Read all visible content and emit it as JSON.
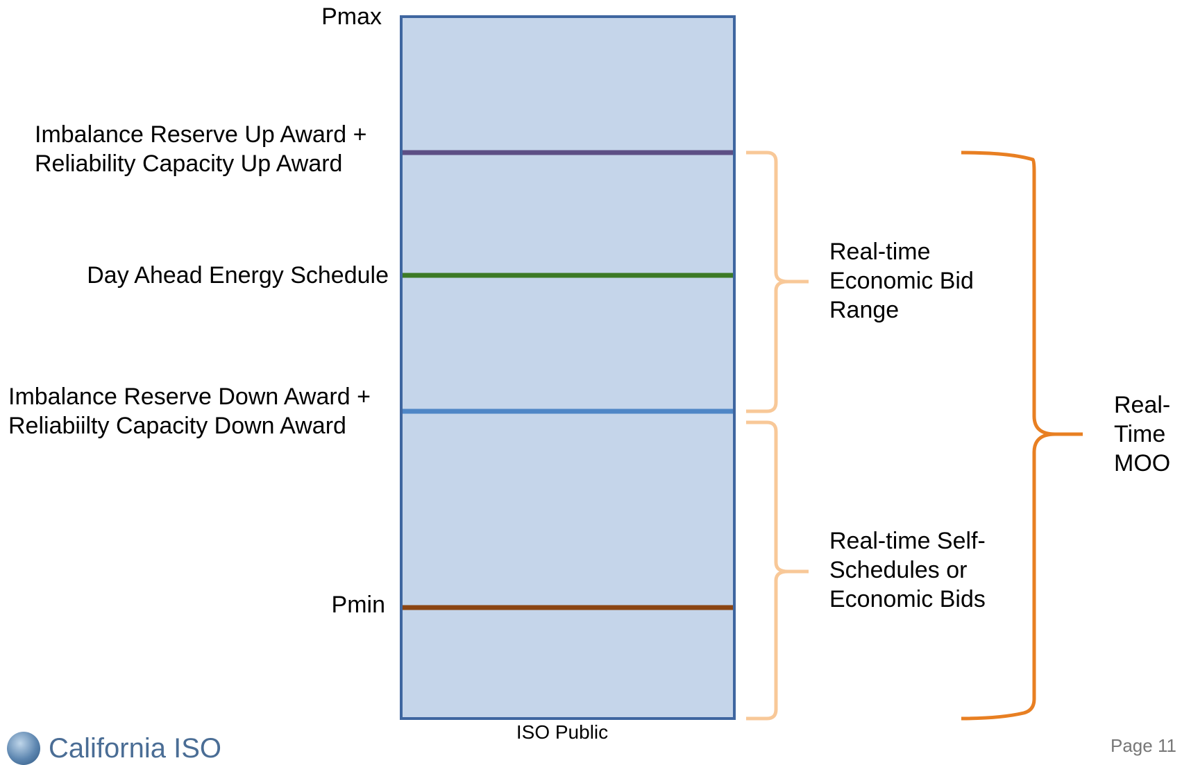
{
  "labels": {
    "pmax": "Pmax",
    "imbalance_up_line1": "Imbalance Reserve Up Award +",
    "imbalance_up_line2": "Reliability Capacity Up Award",
    "day_ahead": "Day Ahead Energy Schedule",
    "imbalance_down_line1": "Imbalance Reserve Down Award +",
    "imbalance_down_line2": "Reliabiilty Capacity Down Award",
    "pmin": "Pmin"
  },
  "brackets": {
    "economic_bid": [
      "Real-time",
      "Economic Bid",
      "Range"
    ],
    "self_schedules": [
      "Real-time Self-",
      "Schedules or",
      "Economic Bids"
    ],
    "moo": [
      "Real-",
      "Time",
      "MOO"
    ]
  },
  "footer": {
    "classification": "ISO Public",
    "logo_text": "California ISO",
    "page": "Page 11"
  },
  "colors": {
    "box_fill": "#c5d5ea",
    "box_border": "#3f66a0",
    "imbalance_up_line": "#5d4f85",
    "day_ahead_line": "#3c7a26",
    "imbalance_down_line": "#4f86c6",
    "pmin_line": "#8b4513",
    "light_bracket": "#f8c898",
    "dark_bracket": "#e87f22"
  }
}
